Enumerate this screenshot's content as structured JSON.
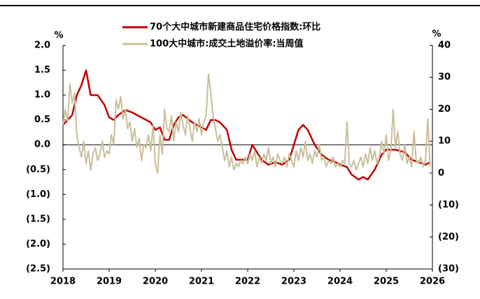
{
  "chart_data": {
    "type": "line",
    "ylabel": "%",
    "y2label": "%",
    "xlim": [
      2018,
      2026
    ],
    "xticks": [
      2018,
      2019,
      2020,
      2021,
      2022,
      2023,
      2024,
      2025,
      2026
    ],
    "ylim": [
      -2.5,
      2
    ],
    "yticks": [
      {
        "value": 2,
        "label": "2.0"
      },
      1.5,
      {
        "value": 1,
        "label": "1.0"
      },
      0.5,
      {
        "value": 0,
        "label": "0.0"
      },
      {
        "value": -0.5,
        "label": "(0.5)"
      },
      {
        "value": -1,
        "label": "(1.0)"
      },
      {
        "value": -1.5,
        "label": "(1.5)"
      },
      {
        "value": -2,
        "label": "(2.0)"
      },
      {
        "value": -2.5,
        "label": "(2.5)"
      }
    ],
    "y2lim": [
      -30,
      40
    ],
    "y2ticks": [
      40,
      30,
      20,
      10,
      0,
      {
        "value": -10,
        "label": "(10)"
      },
      {
        "value": -20,
        "label": "(20)"
      },
      {
        "value": -30,
        "label": "(30)"
      }
    ],
    "series": [
      {
        "name": "70个大中城市新建商品住宅价格指数:环比",
        "color": "#c00000",
        "x": [
          2018.0,
          2018.2,
          2018.3,
          2018.4,
          2018.5,
          2018.6,
          2018.75,
          2018.9,
          2019.0,
          2019.1,
          2019.2,
          2019.35,
          2019.5,
          2019.7,
          2019.9,
          2020.0,
          2020.1,
          2020.2,
          2020.3,
          2020.4,
          2020.5,
          2020.6,
          2020.8,
          2021.0,
          2021.1,
          2021.2,
          2021.3,
          2021.4,
          2021.55,
          2021.65,
          2021.75,
          2021.9,
          2022.0,
          2022.1,
          2022.2,
          2022.3,
          2022.45,
          2022.6,
          2022.75,
          2022.9,
          2023.0,
          2023.1,
          2023.2,
          2023.3,
          2023.45,
          2023.6,
          2023.75,
          2023.9,
          2024.0,
          2024.15,
          2024.25,
          2024.4,
          2024.5,
          2024.6,
          2024.75,
          2024.9,
          2025.0,
          2025.2,
          2025.4,
          2025.55,
          2025.7,
          2025.85,
          2025.95
        ],
        "values": [
          0.4,
          0.6,
          1.0,
          1.2,
          1.5,
          1.0,
          1.0,
          0.8,
          0.55,
          0.5,
          0.6,
          0.7,
          0.65,
          0.55,
          0.45,
          0.3,
          0.35,
          0.1,
          0.1,
          0.4,
          0.55,
          0.6,
          0.45,
          0.35,
          0.3,
          0.5,
          0.5,
          0.45,
          0.3,
          -0.1,
          -0.3,
          -0.3,
          -0.3,
          0.0,
          -0.15,
          -0.3,
          -0.4,
          -0.35,
          -0.4,
          -0.3,
          0.0,
          0.3,
          0.4,
          0.3,
          0.0,
          -0.2,
          -0.3,
          -0.35,
          -0.4,
          -0.45,
          -0.6,
          -0.7,
          -0.65,
          -0.7,
          -0.5,
          -0.2,
          -0.1,
          -0.1,
          -0.15,
          -0.3,
          -0.35,
          -0.4,
          -0.35
        ]
      },
      {
        "name": "100大中城市:成交土地溢价率:当周值",
        "color": "#c9bf99",
        "axis": "y2",
        "x": [
          2018.0,
          2018.05,
          2018.1,
          2018.15,
          2018.2,
          2018.25,
          2018.3,
          2018.35,
          2018.4,
          2018.45,
          2018.5,
          2018.55,
          2018.6,
          2018.65,
          2018.7,
          2018.75,
          2018.8,
          2018.85,
          2018.9,
          2018.95,
          2019.0,
          2019.05,
          2019.1,
          2019.15,
          2019.2,
          2019.25,
          2019.3,
          2019.35,
          2019.4,
          2019.45,
          2019.5,
          2019.55,
          2019.6,
          2019.65,
          2019.7,
          2019.75,
          2019.8,
          2019.85,
          2019.9,
          2019.95,
          2020.0,
          2020.05,
          2020.1,
          2020.15,
          2020.2,
          2020.25,
          2020.3,
          2020.35,
          2020.4,
          2020.45,
          2020.5,
          2020.55,
          2020.6,
          2020.65,
          2020.7,
          2020.75,
          2020.8,
          2020.85,
          2020.9,
          2020.95,
          2021.0,
          2021.05,
          2021.1,
          2021.15,
          2021.2,
          2021.25,
          2021.3,
          2021.35,
          2021.4,
          2021.45,
          2021.5,
          2021.55,
          2021.6,
          2021.65,
          2021.7,
          2021.75,
          2021.8,
          2021.85,
          2021.9,
          2021.95,
          2022.0,
          2022.05,
          2022.1,
          2022.15,
          2022.2,
          2022.25,
          2022.3,
          2022.35,
          2022.4,
          2022.45,
          2022.5,
          2022.55,
          2022.6,
          2022.65,
          2022.7,
          2022.75,
          2022.8,
          2022.85,
          2022.9,
          2022.95,
          2023.0,
          2023.05,
          2023.1,
          2023.15,
          2023.2,
          2023.25,
          2023.3,
          2023.35,
          2023.4,
          2023.45,
          2023.5,
          2023.55,
          2023.6,
          2023.65,
          2023.7,
          2023.75,
          2023.8,
          2023.85,
          2023.9,
          2023.95,
          2024.0,
          2024.05,
          2024.1,
          2024.15,
          2024.2,
          2024.25,
          2024.3,
          2024.35,
          2024.4,
          2024.45,
          2024.5,
          2024.55,
          2024.6,
          2024.65,
          2024.7,
          2024.75,
          2024.8,
          2024.85,
          2024.9,
          2024.95,
          2025.0,
          2025.05,
          2025.1,
          2025.15,
          2025.2,
          2025.25,
          2025.3,
          2025.35,
          2025.4,
          2025.45,
          2025.5,
          2025.55,
          2025.6,
          2025.65,
          2025.7,
          2025.75,
          2025.8,
          2025.85,
          2025.9,
          2025.95
        ],
        "values": [
          15,
          20,
          16,
          28,
          22,
          25,
          12,
          8,
          5,
          10,
          3,
          7,
          1,
          6,
          8,
          4,
          6,
          10,
          5,
          7,
          6,
          12,
          9,
          23,
          20,
          24,
          17,
          20,
          14,
          16,
          10,
          14,
          8,
          11,
          4,
          9,
          8,
          12,
          7,
          15,
          3,
          0,
          12,
          6,
          20,
          14,
          13,
          18,
          10,
          16,
          13,
          19,
          15,
          12,
          18,
          14,
          10,
          16,
          13,
          17,
          12,
          16,
          18,
          31,
          25,
          18,
          14,
          10,
          12,
          8,
          4,
          7,
          2,
          5,
          1,
          3,
          2,
          4,
          3,
          5,
          3,
          6,
          4,
          7,
          2,
          5,
          3,
          6,
          4,
          8,
          3,
          5,
          2,
          6,
          4,
          3,
          5,
          2,
          6,
          4,
          2,
          7,
          4,
          8,
          5,
          10,
          4,
          6,
          3,
          7,
          5,
          9,
          4,
          5,
          2,
          4,
          3,
          5,
          2,
          3,
          2,
          4,
          3,
          16,
          3,
          2,
          4,
          1,
          3,
          5,
          2,
          6,
          3,
          8,
          4,
          7,
          3,
          5,
          10,
          6,
          12,
          4,
          7,
          20,
          8,
          13,
          6,
          4,
          9,
          3,
          5,
          2,
          13,
          4,
          3,
          5,
          2,
          4,
          17,
          2
        ]
      }
    ]
  }
}
